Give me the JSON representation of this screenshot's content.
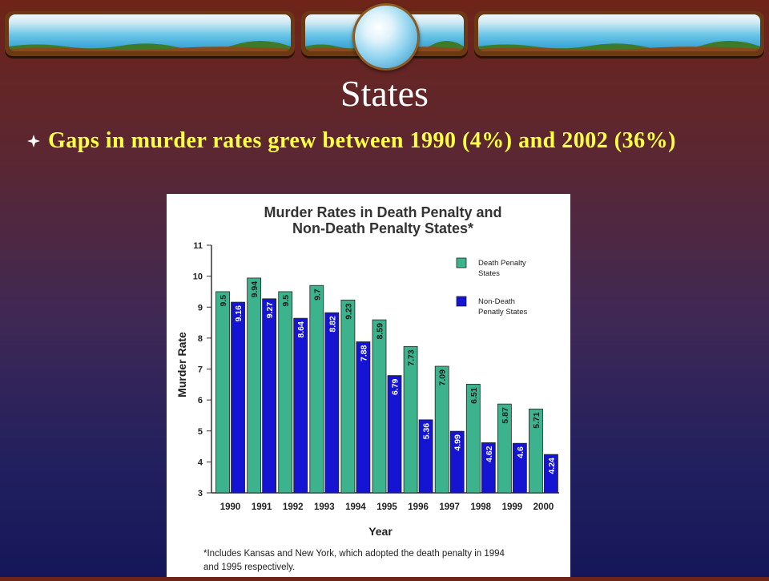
{
  "slide": {
    "title": "States",
    "bullet": "Gaps in murder rates grew between 1990 (4%) and 2002 (36%)"
  },
  "colors": {
    "title": "#ffffff",
    "bullet_text": "#ffff44",
    "death_penalty_bar": "#3cb38c",
    "non_death_penalty_bar": "#1414d2",
    "chart_title": "#333333"
  },
  "chart_data": {
    "type": "bar",
    "title": "Murder Rates in Death Penalty and Non-Death Penalty States*",
    "title_lines": [
      "Murder Rates in Death Penalty and",
      "Non-Death Penalty States*"
    ],
    "xlabel": "Year",
    "ylabel": "Murder Rate",
    "ylim": [
      3,
      11
    ],
    "yticks": [
      3,
      4,
      5,
      6,
      7,
      8,
      9,
      10,
      11
    ],
    "categories": [
      "1990",
      "1991",
      "1992",
      "1993",
      "1994",
      "1995",
      "1996",
      "1997",
      "1998",
      "1999",
      "2000"
    ],
    "series": [
      {
        "name": "Death Penalty States",
        "legend_lines": [
          "Death Penalty",
          "States"
        ],
        "values": [
          9.5,
          9.94,
          9.5,
          9.7,
          9.23,
          8.59,
          7.73,
          7.09,
          6.51,
          5.87,
          5.71
        ]
      },
      {
        "name": "Non-Death Penatly States",
        "legend_lines": [
          "Non-Death",
          "Penatly States"
        ],
        "values": [
          9.16,
          9.27,
          8.64,
          8.82,
          7.88,
          6.79,
          5.36,
          4.99,
          4.62,
          4.6,
          4.24
        ]
      }
    ],
    "legend_position": "top-right",
    "grid": false,
    "footnote_lines": [
      "*Includes Kansas and New York, which adopted the death penalty in 1994",
      "and 1995 respectively."
    ]
  }
}
